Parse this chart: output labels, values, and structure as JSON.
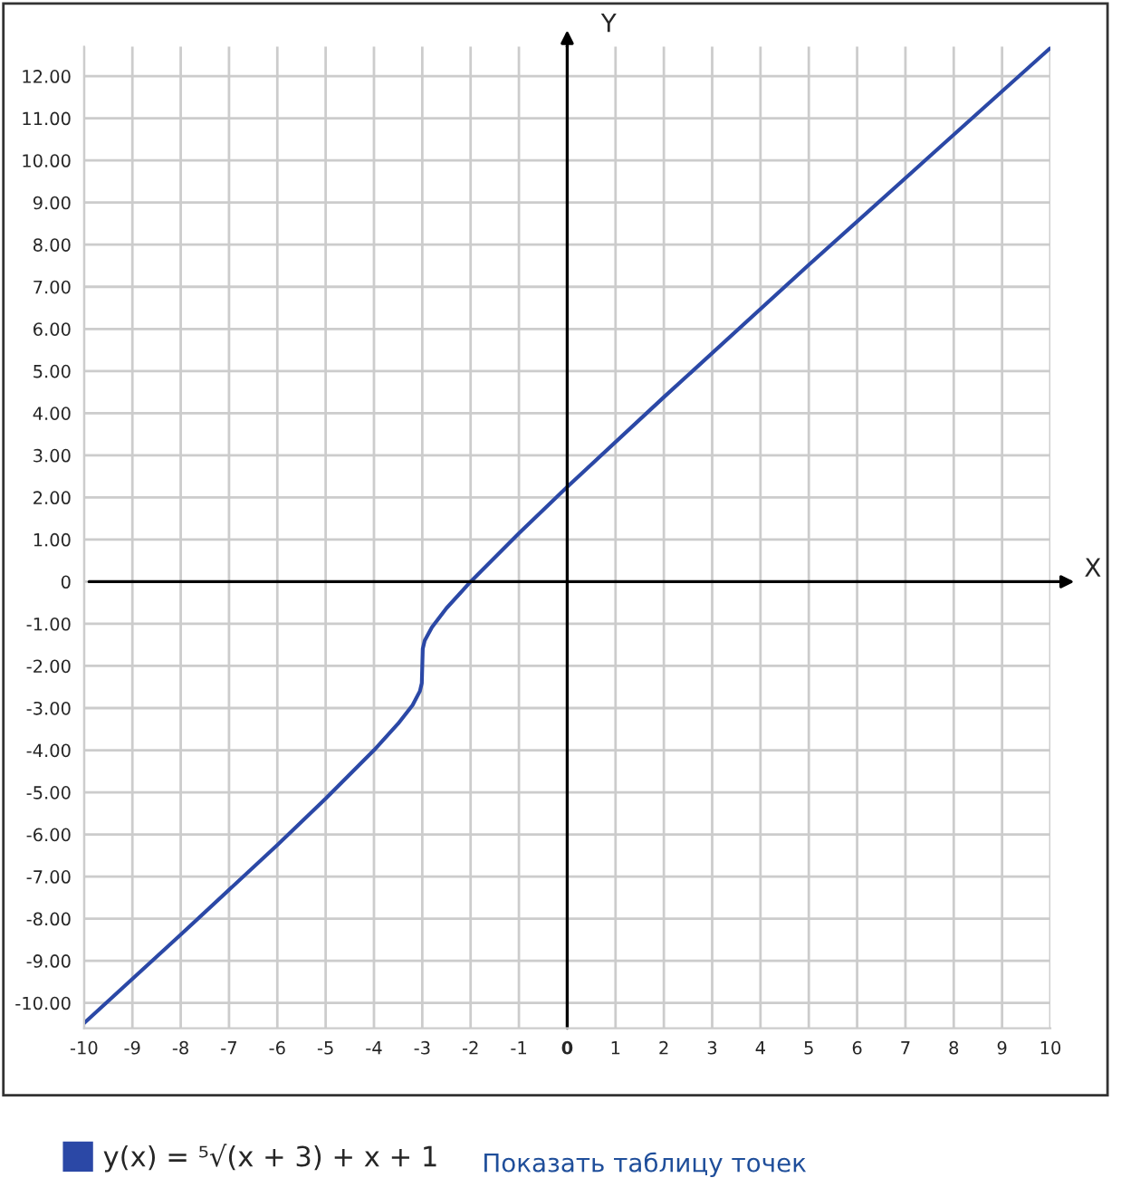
{
  "chart_data": {
    "type": "line",
    "xlabel": "X",
    "ylabel": "Y",
    "x": [
      -10,
      -8,
      -6,
      -5,
      -4,
      -3.5,
      -3.2,
      -3.05,
      -3.01,
      -3,
      -2.99,
      -2.95,
      -2.8,
      -2.5,
      -2,
      -1,
      0,
      2,
      5,
      10
    ],
    "series": [
      {
        "name": "y(x) = ⁵√(x + 3) + x + 1",
        "color": "#2b48a6",
        "values": [
          -10.48,
          -8.38,
          -6.25,
          -5.15,
          -4,
          -3.37,
          -2.93,
          -2.6,
          -2.41,
          -2,
          -1.59,
          -1.4,
          -1.08,
          -0.63,
          0,
          1.15,
          2.25,
          4.38,
          7.52,
          12.67
        ]
      }
    ],
    "xlim": [
      -10,
      10
    ],
    "ylim": [
      -10.6,
      12.7
    ],
    "xticks": [
      -10,
      -9,
      -8,
      -7,
      -6,
      -5,
      -4,
      -3,
      -2,
      -1,
      0,
      1,
      2,
      3,
      4,
      5,
      6,
      7,
      8,
      9,
      10
    ],
    "yticks": [
      {
        "value": -10,
        "label": "-10.00"
      },
      {
        "value": -9,
        "label": "-9.00"
      },
      {
        "value": -8,
        "label": "-8.00"
      },
      {
        "value": -7,
        "label": "-7.00"
      },
      {
        "value": -6,
        "label": "-6.00"
      },
      {
        "value": -5,
        "label": "-5.00"
      },
      {
        "value": -4,
        "label": "-4.00"
      },
      {
        "value": -3,
        "label": "-3.00"
      },
      {
        "value": -2,
        "label": "-2.00"
      },
      {
        "value": -1,
        "label": "-1.00"
      },
      0,
      {
        "value": 1,
        "label": "1.00"
      },
      {
        "value": 2,
        "label": "2.00"
      },
      {
        "value": 3,
        "label": "3.00"
      },
      {
        "value": 4,
        "label": "4.00"
      },
      {
        "value": 5,
        "label": "5.00"
      },
      {
        "value": 6,
        "label": "6.00"
      },
      {
        "value": 7,
        "label": "7.00"
      },
      {
        "value": 8,
        "label": "8.00"
      },
      {
        "value": 9,
        "label": "9.00"
      },
      {
        "value": 10,
        "label": "10.00"
      },
      {
        "value": 11,
        "label": "11.00"
      },
      {
        "value": 12,
        "label": "12.00"
      }
    ],
    "grid": true,
    "legend": "bottom left",
    "marker": "none",
    "line_style": "solid",
    "annotations": [
      "Показать таблицу точек"
    ]
  }
}
